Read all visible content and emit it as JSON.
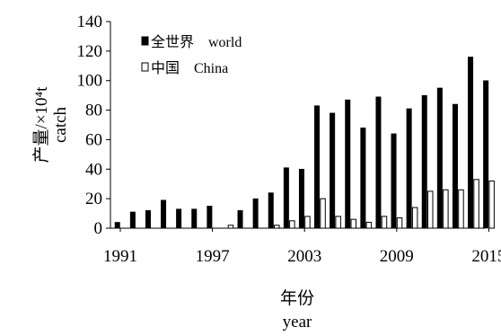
{
  "chart_data": {
    "type": "bar",
    "x": [
      1991,
      1992,
      1993,
      1994,
      1995,
      1996,
      1997,
      1998,
      1999,
      2000,
      2001,
      2002,
      2003,
      2004,
      2005,
      2006,
      2007,
      2008,
      2009,
      2010,
      2011,
      2012,
      2013,
      2014,
      2015
    ],
    "series": [
      {
        "name": "全世界　world",
        "color": "#000000",
        "fill": "solid",
        "values": [
          4,
          11,
          12,
          19,
          13,
          13,
          15,
          0,
          12,
          20,
          24,
          41,
          40,
          83,
          78,
          87,
          68,
          89,
          64,
          81,
          90,
          95,
          84,
          116,
          100
        ]
      },
      {
        "name": "中国　China",
        "color": "#000000",
        "fill": "hollow",
        "values": [
          0,
          0,
          0,
          0,
          0,
          0,
          0,
          2,
          0,
          0,
          2,
          5,
          8,
          20,
          8,
          6,
          4,
          8,
          7,
          14,
          25,
          26,
          26,
          33,
          32
        ]
      }
    ],
    "xticks": [
      "1991",
      "1997",
      "2003",
      "2009",
      "2015"
    ],
    "yticks": [
      "0",
      "20",
      "40",
      "60",
      "80",
      "100",
      "120",
      "140"
    ],
    "ylim": [
      0,
      140
    ],
    "ylabel_line1": "产量/×10⁴t",
    "ylabel_line2": "catch",
    "xlabel_line1": "年份",
    "xlabel_line2": "year",
    "legend_position": "top-left"
  }
}
